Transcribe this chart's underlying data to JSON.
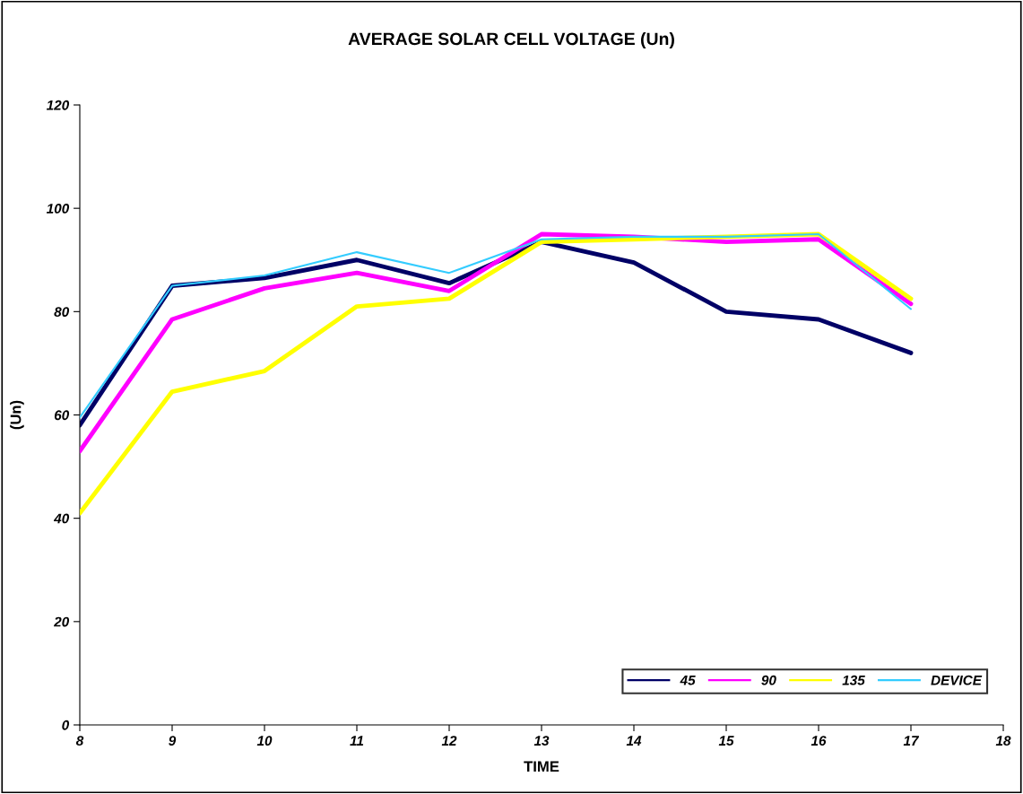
{
  "chart_data": {
    "type": "line",
    "title": "AVERAGE SOLAR CELL VOLTAGE (Un)",
    "xlabel": "TIME",
    "ylabel": "(Un)",
    "x": [
      8,
      9,
      10,
      11,
      12,
      13,
      14,
      15,
      16,
      17
    ],
    "series": [
      {
        "name": "45",
        "color": "#000066",
        "values": [
          58,
          85,
          86.5,
          90,
          85.5,
          93.5,
          89.5,
          80,
          78.5,
          72
        ]
      },
      {
        "name": "90",
        "color": "#ff00ff",
        "values": [
          53,
          78.5,
          84.5,
          87.5,
          84,
          95,
          94.5,
          93.5,
          94,
          81.5
        ]
      },
      {
        "name": "135",
        "color": "#ffff00",
        "values": [
          41,
          64.5,
          68.5,
          81,
          82.5,
          93.5,
          94,
          94.5,
          95,
          82.5
        ]
      },
      {
        "name": "DEVICE",
        "color": "#33ccff",
        "values": [
          59.5,
          85,
          87,
          91.5,
          87.5,
          94,
          94.5,
          94.5,
          95,
          80.5
        ]
      }
    ],
    "xlim": [
      8,
      18
    ],
    "xticks": [
      8,
      9,
      10,
      11,
      12,
      13,
      14,
      15,
      16,
      17,
      18
    ],
    "ylim": [
      0,
      120
    ],
    "yticks": [
      0,
      20,
      40,
      60,
      80,
      100,
      120
    ],
    "grid": false,
    "legend": "bottom right",
    "marker": "none",
    "line_style": "solid"
  }
}
